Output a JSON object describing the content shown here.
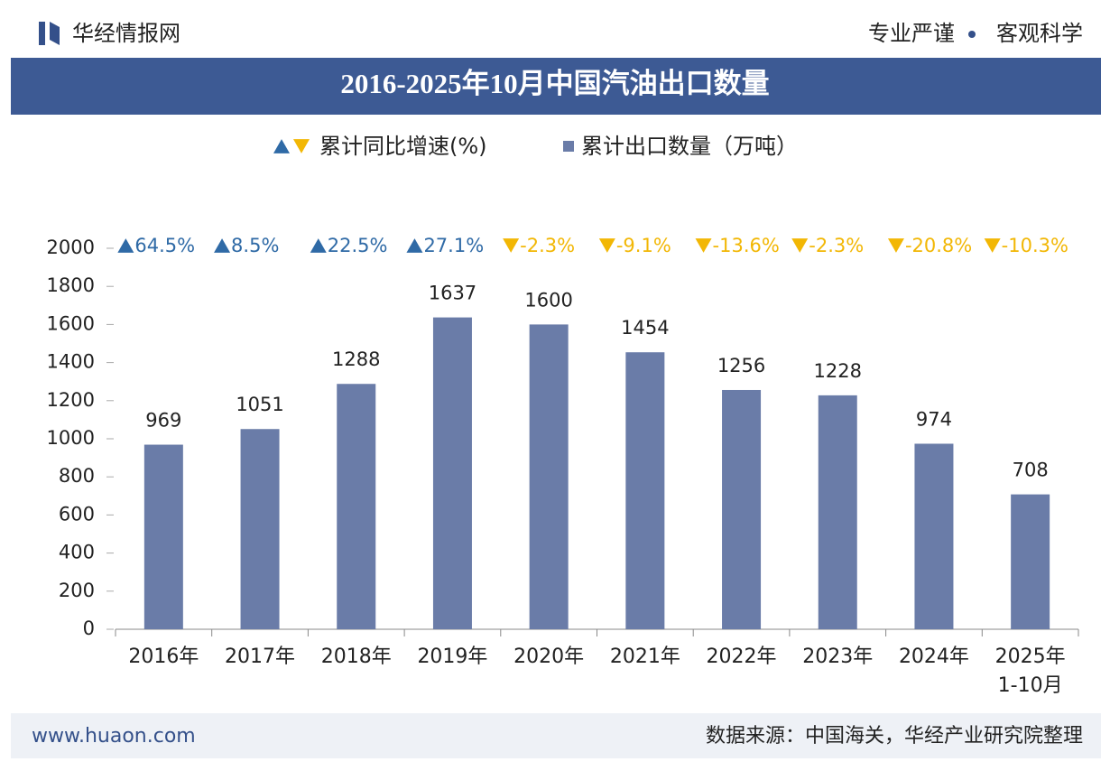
{
  "header": {
    "brand": "华经情报网",
    "slogan": [
      "专业严谨",
      "客观科学"
    ]
  },
  "chart_data": {
    "type": "bar",
    "title": "2016-2025年10月中国汽油出口数量",
    "categories": [
      "2016年",
      "2017年",
      "2018年",
      "2019年",
      "2020年",
      "2021年",
      "2022年",
      "2023年",
      "2024年",
      "2025年\n1-10月"
    ],
    "series": [
      {
        "name": "累计同比增速(%)",
        "display": "label",
        "color": "#2f6aa6",
        "negative_color": "#f2b705",
        "values": [
          64.5,
          8.5,
          22.5,
          27.1,
          -2.3,
          -9.1,
          -13.6,
          -2.3,
          -20.8,
          -10.3
        ],
        "value_labels": [
          "64.5%",
          "8.5%",
          "22.5%",
          "27.1%",
          "-2.3%",
          "-9.1%",
          "-13.6%",
          "-2.3%",
          "-20.8%",
          "-10.3%"
        ]
      },
      {
        "name": "累计出口数量（万吨）",
        "display": "bar",
        "color": "#6a7ca8",
        "values": [
          969,
          1051,
          1288,
          1637,
          1600,
          1454,
          1256,
          1228,
          974,
          708
        ]
      }
    ],
    "ylim": [
      0,
      2000
    ],
    "yticks": [
      0,
      200,
      400,
      600,
      800,
      1000,
      1200,
      1400,
      1600,
      1800,
      2000
    ],
    "grid": false
  },
  "footer": {
    "website": "www.huaon.com",
    "source": "数据来源：中国海关，华经产业研究院整理"
  }
}
